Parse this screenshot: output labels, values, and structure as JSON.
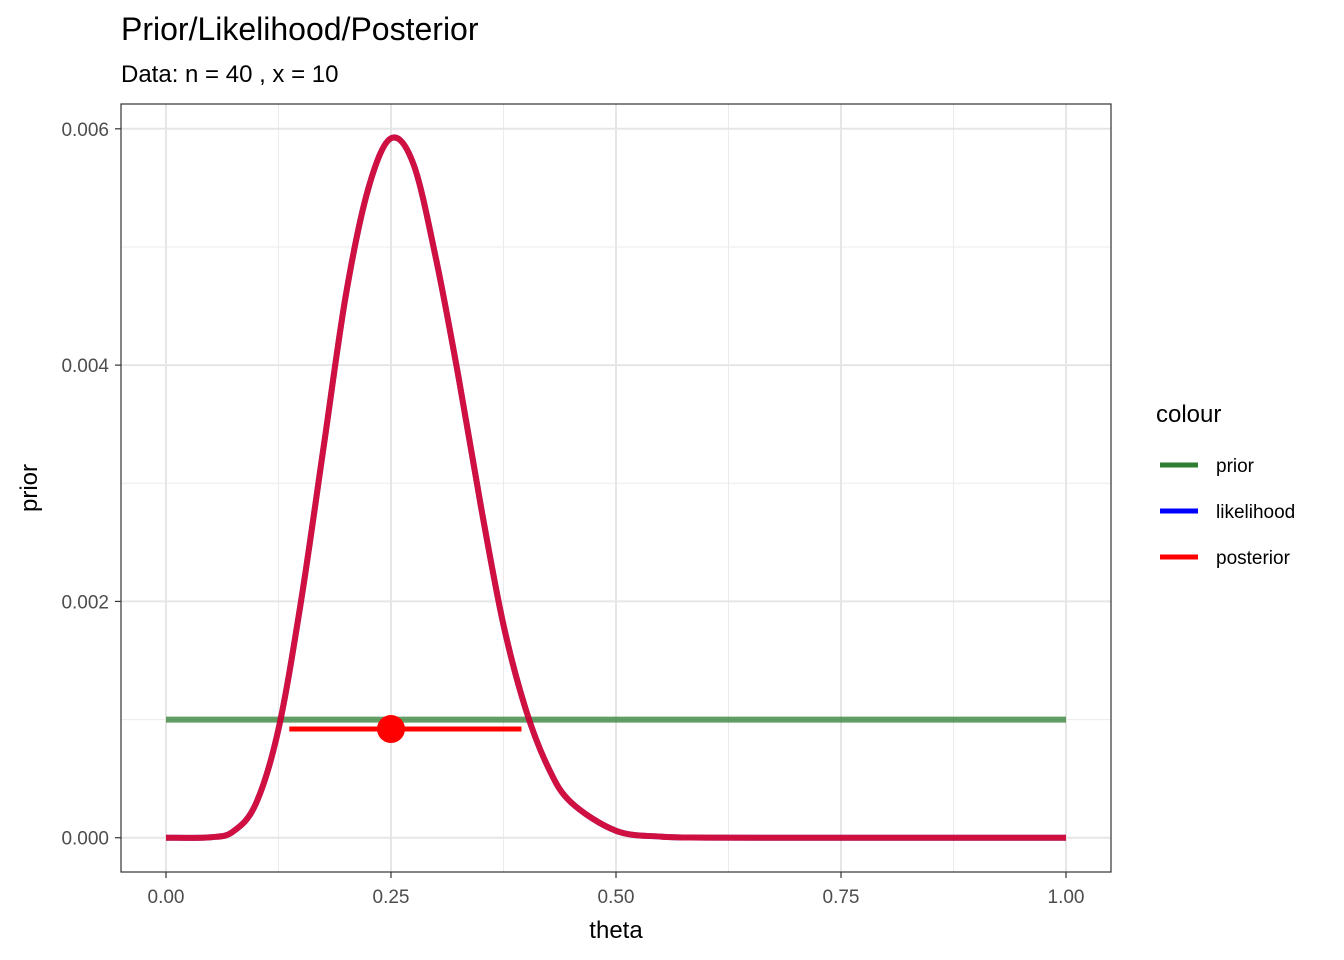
{
  "chart_data": {
    "type": "line",
    "title": "Prior/Likelihood/Posterior",
    "subtitle": "Data: n = 40 , x = 10",
    "xlabel": "theta",
    "ylabel": "prior",
    "xlim": [
      -0.05,
      1.05
    ],
    "ylim": [
      -0.00029,
      0.00621
    ],
    "x_ticks": [
      0,
      0.25,
      0.5,
      0.75,
      1
    ],
    "x_tick_labels": [
      "0.00",
      "0.25",
      "0.50",
      "0.75",
      "1.00"
    ],
    "y_ticks": [
      0,
      0.002,
      0.004,
      0.006
    ],
    "y_tick_labels": [
      "0.000",
      "0.002",
      "0.004",
      "0.006"
    ],
    "grid": true,
    "legend": {
      "title": "colour",
      "placement": "right",
      "entries": [
        {
          "label": "prior",
          "color": "#2e7d32"
        },
        {
          "label": "likelihood",
          "color": "#0000ff"
        },
        {
          "label": "posterior",
          "color": "#ff0000"
        }
      ]
    },
    "series": [
      {
        "name": "prior",
        "color": "#2e7d32",
        "x": [
          0,
          1
        ],
        "y": [
          0.001,
          0.001
        ]
      },
      {
        "name": "likelihood",
        "color": "#0000ff",
        "x": [
          0,
          0.05,
          0.075,
          0.1,
          0.125,
          0.15,
          0.175,
          0.2,
          0.225,
          0.25,
          0.275,
          0.3,
          0.325,
          0.35,
          0.375,
          0.4,
          0.425,
          0.45,
          0.5,
          0.55,
          0.6,
          0.7,
          0.8,
          0.9,
          1
        ],
        "y": [
          0,
          4.2e-06,
          5.5e-05,
          0.00029,
          0.00092,
          0.002,
          0.0033,
          0.0046,
          0.0055,
          0.00592,
          0.0057,
          0.0049,
          0.0039,
          0.0028,
          0.0018,
          0.00108,
          0.00059,
          0.0003,
          5.9e-05,
          9.3e-06,
          1.1e-06,
          0,
          0,
          0,
          0
        ]
      },
      {
        "name": "posterior",
        "color": "#ff0000",
        "x": [
          0,
          0.05,
          0.075,
          0.1,
          0.125,
          0.15,
          0.175,
          0.2,
          0.225,
          0.25,
          0.275,
          0.3,
          0.325,
          0.35,
          0.375,
          0.4,
          0.425,
          0.45,
          0.5,
          0.55,
          0.6,
          0.7,
          0.8,
          0.9,
          1
        ],
        "y": [
          0,
          4.2e-06,
          5.5e-05,
          0.00029,
          0.00092,
          0.002,
          0.0033,
          0.0046,
          0.0055,
          0.00592,
          0.0057,
          0.0049,
          0.0039,
          0.0028,
          0.0018,
          0.00108,
          0.00059,
          0.0003,
          5.9e-05,
          9.3e-06,
          1.1e-06,
          0,
          0,
          0,
          0
        ]
      }
    ],
    "interval": {
      "name": "posterior",
      "color": "#ff0000",
      "from": 0.137,
      "to": 0.395,
      "y": 0.00092,
      "point": 0.25
    }
  }
}
